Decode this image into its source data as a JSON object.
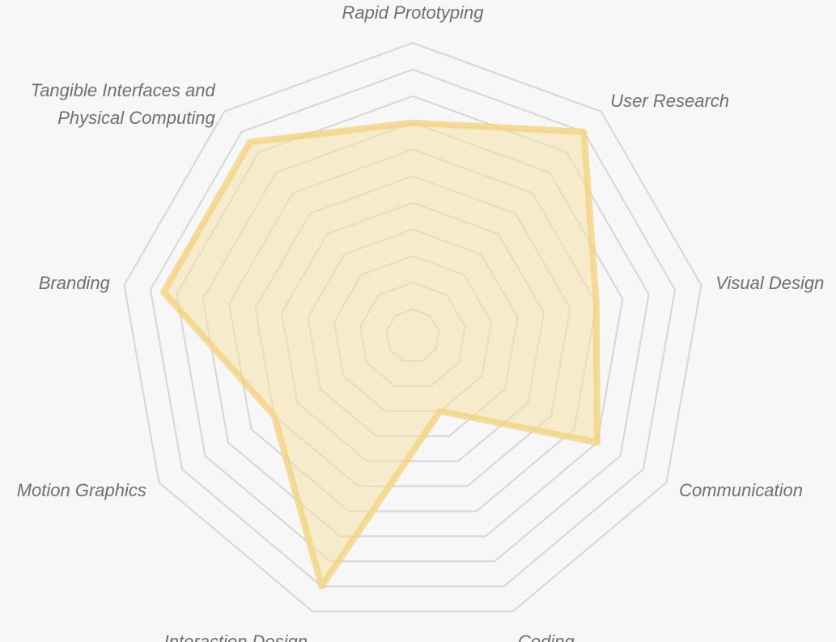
{
  "chart_data": {
    "type": "radar",
    "axes": [
      "Rapid Prototyping",
      "User Research",
      "Visual Design",
      "Communication",
      "Coding",
      "Interaction Design",
      "Motion Graphics",
      "Branding",
      "Tangible Interfaces and Physical Computing"
    ],
    "series": [
      {
        "values": [
          8,
          10,
          7,
          8,
          3,
          10,
          6,
          9.5,
          9.5
        ]
      }
    ],
    "scale": {
      "min": 0,
      "max": 11,
      "levels": 11
    },
    "colors": {
      "background": "#f7f7f7",
      "grid": "#d6d6d6",
      "series_fill": "#f5e3aa",
      "series_stroke": "#f3d27a",
      "label": "#6f6f6f"
    }
  }
}
